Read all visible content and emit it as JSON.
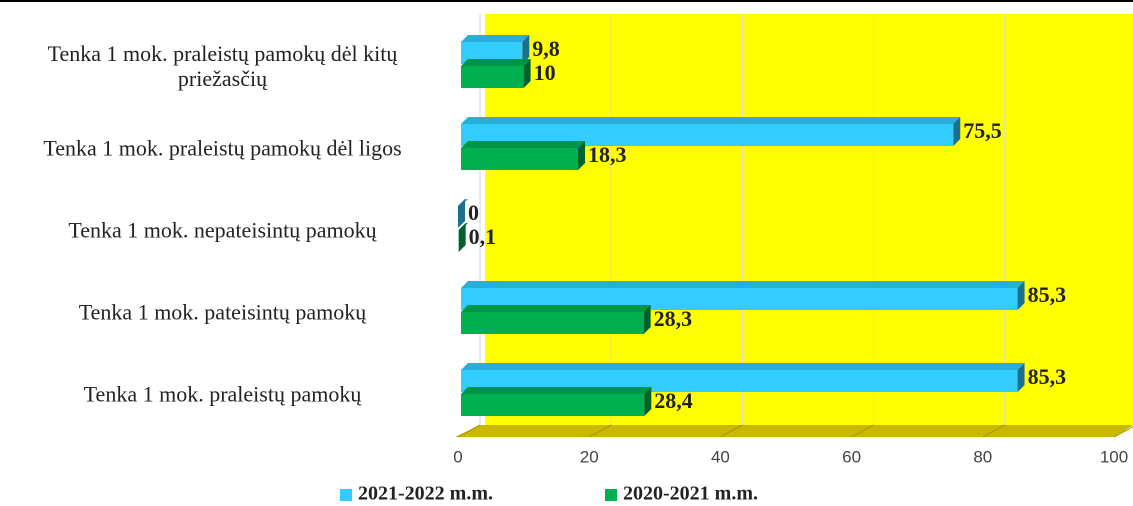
{
  "chart_data": {
    "type": "bar3d_horizontal",
    "categories": [
      "Tenka 1 mok. praleistų pamokų dėl kitų priežasčių",
      "Tenka 1 mok. praleistų pamokų dėl ligos",
      "Tenka 1 mok. nepateisintų pamokų",
      "Tenka 1 mok. pateisintų pamokų",
      "Tenka 1 mok. praleistų pamokų"
    ],
    "series": [
      {
        "name": "2021-2022 m.m.",
        "color": "#33ccff",
        "values": [
          9.8,
          75.5,
          0,
          85.3,
          85.3
        ],
        "value_labels": [
          "9,8",
          "75,5",
          "0",
          "85,3",
          "85,3"
        ]
      },
      {
        "name": "2020-2021 m.m.",
        "color": "#00b050",
        "values": [
          10,
          18.3,
          0.1,
          28.3,
          28.4
        ],
        "value_labels": [
          "10",
          "18,3",
          "0,1",
          "28,3",
          "28,4"
        ]
      }
    ],
    "xlim": [
      0,
      100
    ],
    "xticks": [
      0,
      20,
      40,
      60,
      80,
      100
    ],
    "grid": true,
    "legend": "bottom"
  }
}
